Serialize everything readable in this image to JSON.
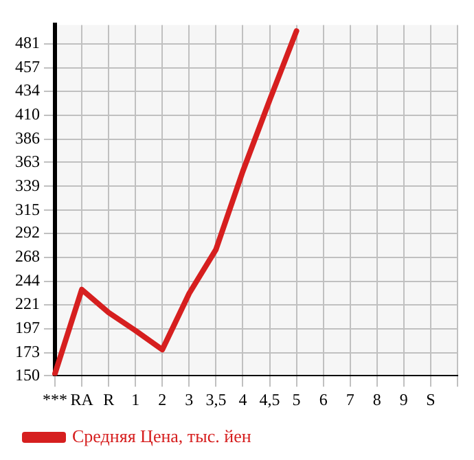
{
  "chart_data": {
    "type": "line",
    "categories": [
      "***",
      "RA",
      "R",
      "1",
      "2",
      "3",
      "3,5",
      "4",
      "4,5",
      "5",
      "6",
      "7",
      "8",
      "9",
      "S",
      null
    ],
    "series": [
      {
        "name": "Средняя Цена, тыс. йен",
        "color": "#d61f1f",
        "values": [
          152,
          236,
          213,
          195,
          176,
          232,
          276,
          354,
          425,
          494,
          null,
          null,
          null,
          null,
          null,
          null
        ]
      }
    ],
    "ylim": [
      150,
      500
    ],
    "yticks": [
      150,
      173,
      197,
      221,
      244,
      268,
      292,
      315,
      339,
      363,
      386,
      410,
      434,
      457,
      481
    ],
    "grid": true,
    "legend": "bottom left",
    "marker": "none",
    "line_style": "solid"
  }
}
